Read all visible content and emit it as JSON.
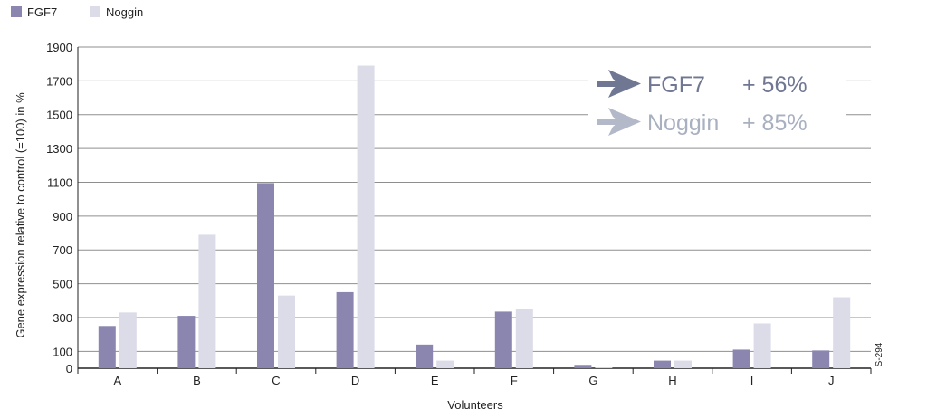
{
  "chart_data": {
    "type": "bar",
    "xlabel": "Volunteers",
    "ylabel": "Gene expression relative to control (=100) in %",
    "ylim": [
      0,
      1900
    ],
    "yticks": [
      0,
      100,
      300,
      500,
      700,
      900,
      1100,
      1300,
      1500,
      1700,
      1900
    ],
    "grid": true,
    "legend_placement": "top-left",
    "categories": [
      "A",
      "B",
      "C",
      "D",
      "E",
      "F",
      "G",
      "H",
      "I",
      "J"
    ],
    "series": [
      {
        "name": "FGF7",
        "color": "#8a86b0",
        "values": [
          250,
          310,
          1095,
          450,
          140,
          335,
          20,
          45,
          110,
          105
        ]
      },
      {
        "name": "Noggin",
        "color": "#dcdbe8",
        "values": [
          330,
          790,
          430,
          1790,
          45,
          350,
          5,
          45,
          265,
          420
        ]
      }
    ],
    "annotations": [
      {
        "arrow_color": "#6f7792",
        "label": "FGF7",
        "value": "+ 56%",
        "color": "#6f7792"
      },
      {
        "arrow_color": "#b3b9c8",
        "label": "Noggin",
        "value": "+ 85%",
        "color": "#a9b0c0"
      }
    ],
    "side_code": "S-294"
  }
}
